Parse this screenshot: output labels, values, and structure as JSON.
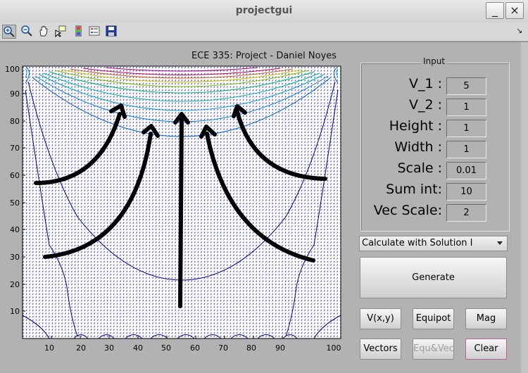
{
  "window": {
    "title": "projectgui",
    "minimize": "_",
    "maximize": "□",
    "close": "×"
  },
  "toolbar": {
    "corner_arrow": "↘"
  },
  "figure": {
    "title": "ECE 335: Project - Daniel Noyes",
    "x_ticks": [
      "10",
      "20",
      "30",
      "40",
      "50",
      "60",
      "70",
      "80",
      "90",
      "100"
    ],
    "y_ticks": [
      "10",
      "20",
      "30",
      "40",
      "50",
      "60",
      "70",
      "80",
      "90",
      "100"
    ]
  },
  "chart_data": {
    "type": "contour",
    "xlim": [
      0,
      100
    ],
    "ylim": [
      0,
      100
    ],
    "x_ticks": [
      10,
      20,
      30,
      40,
      50,
      60,
      70,
      80,
      90,
      100
    ],
    "y_ticks": [
      10,
      20,
      30,
      40,
      50,
      60,
      70,
      80,
      90,
      100
    ],
    "grid": false,
    "overlay": "quiver field with five hand-drawn arrows pointing upward"
  },
  "colors": {
    "contour_high": "#a0007a",
    "contour_mid": "#d0c000",
    "contour_low": "#00a0d0",
    "contour_dark": "#000090",
    "quiver": "#0000b0",
    "arrow": "#000000"
  },
  "input": {
    "title": "Input",
    "fields": [
      {
        "label": "V_1 :",
        "value": "5"
      },
      {
        "label": "V_2 :",
        "value": "1"
      },
      {
        "label": "Height :",
        "value": "1"
      },
      {
        "label": "Width :",
        "value": "1"
      },
      {
        "label": "Scale :",
        "value": "0.01"
      },
      {
        "label": "Sum int:",
        "value": "10"
      },
      {
        "label": "Vec Scale:",
        "value": "2"
      }
    ]
  },
  "method": {
    "selected": "Calculate with Solution I"
  },
  "buttons": {
    "generate": "Generate",
    "vxy": "V(x,y)",
    "equipot": "Equipot",
    "mag": "Mag",
    "vectors": "Vectors",
    "equvec": "Equ&Vec",
    "clear": "Clear"
  }
}
